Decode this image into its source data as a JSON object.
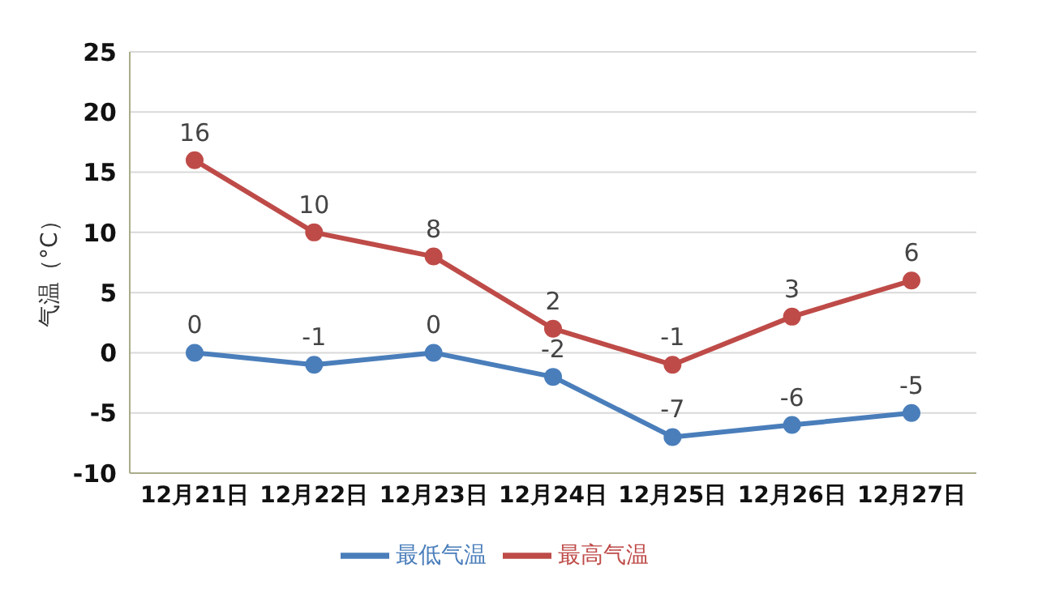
{
  "chart_data": {
    "type": "line",
    "ylabel": "气温（°C）",
    "categories": [
      "12月21日",
      "12月22日",
      "12月23日",
      "12月24日",
      "12月25日",
      "12月26日",
      "12月27日"
    ],
    "series": [
      {
        "name": "最低气温",
        "color": "#4a7ebb",
        "values": [
          0,
          -1,
          0,
          -2,
          -7,
          -6,
          -5
        ]
      },
      {
        "name": "最高气温",
        "color": "#be4b48",
        "values": [
          16,
          10,
          8,
          2,
          -1,
          3,
          6
        ]
      }
    ],
    "ylim": [
      -10,
      25
    ],
    "yticks": [
      -10,
      -5,
      0,
      5,
      10,
      15,
      20,
      25
    ],
    "grid": "y",
    "legend": "bottom",
    "marker": "circle",
    "line_style": "solid",
    "data_labels": true
  }
}
